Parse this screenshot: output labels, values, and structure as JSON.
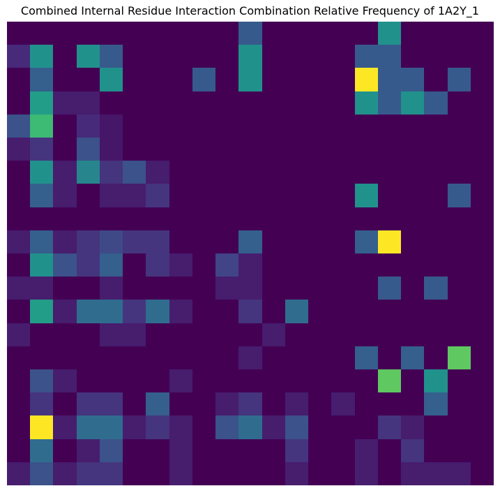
{
  "chart_data": {
    "type": "heatmap",
    "title": "Combined Internal Residue Interaction Combination Relative Frequency of 1A2Y_1",
    "xlabel": "",
    "ylabel": "",
    "colormap": "viridis",
    "value_range": [
      0,
      1
    ],
    "axes_visible": false,
    "grid": false,
    "n_rows": 20,
    "n_cols": 21,
    "values": [
      [
        0,
        0,
        0,
        0,
        0,
        0,
        0,
        0,
        0,
        0,
        0.28,
        0,
        0,
        0,
        0,
        0,
        0.5,
        0,
        0,
        0,
        0
      ],
      [
        0.12,
        0.5,
        0,
        0.5,
        0.28,
        0,
        0,
        0,
        0,
        0,
        0.5,
        0,
        0,
        0,
        0,
        0.28,
        0.28,
        0,
        0,
        0,
        0
      ],
      [
        0,
        0.3,
        0,
        0,
        0.5,
        0,
        0,
        0,
        0.28,
        0,
        0.5,
        0,
        0,
        0,
        0,
        1,
        0.28,
        0.28,
        0,
        0.28,
        0
      ],
      [
        0,
        0.55,
        0.08,
        0.08,
        0,
        0,
        0,
        0,
        0,
        0,
        0,
        0,
        0,
        0,
        0,
        0.5,
        0.28,
        0.5,
        0.28,
        0,
        0
      ],
      [
        0.25,
        0.68,
        0,
        0.12,
        0.06,
        0,
        0,
        0,
        0,
        0,
        0,
        0,
        0,
        0,
        0,
        0,
        0,
        0,
        0,
        0,
        0
      ],
      [
        0.08,
        0.15,
        0,
        0.25,
        0.06,
        0,
        0,
        0,
        0,
        0,
        0,
        0,
        0,
        0,
        0,
        0,
        0,
        0,
        0,
        0,
        0
      ],
      [
        0,
        0.5,
        0.08,
        0.45,
        0.15,
        0.25,
        0.08,
        0,
        0,
        0,
        0,
        0,
        0,
        0,
        0,
        0,
        0,
        0,
        0,
        0,
        0
      ],
      [
        0,
        0.3,
        0.08,
        0,
        0.08,
        0.08,
        0.15,
        0,
        0,
        0,
        0,
        0,
        0,
        0,
        0,
        0.5,
        0,
        0,
        0,
        0.28,
        0
      ],
      [
        0,
        0,
        0,
        0,
        0,
        0,
        0,
        0,
        0,
        0,
        0,
        0,
        0,
        0,
        0,
        0,
        0,
        0,
        0,
        0,
        0
      ],
      [
        0.08,
        0.3,
        0.08,
        0.15,
        0.22,
        0.15,
        0.15,
        0,
        0,
        0,
        0.3,
        0,
        0,
        0,
        0,
        0.3,
        1,
        0,
        0,
        0,
        0
      ],
      [
        0,
        0.5,
        0.25,
        0.15,
        0.3,
        0,
        0.15,
        0.08,
        0,
        0.2,
        0.08,
        0,
        0,
        0,
        0,
        0,
        0,
        0,
        0,
        0,
        0
      ],
      [
        0.08,
        0.08,
        0,
        0,
        0.08,
        0,
        0,
        0,
        0,
        0.08,
        0.08,
        0,
        0,
        0,
        0,
        0,
        0.28,
        0,
        0.28,
        0,
        0
      ],
      [
        0,
        0.55,
        0.08,
        0.35,
        0.35,
        0.15,
        0.35,
        0.08,
        0,
        0,
        0.15,
        0,
        0.35,
        0,
        0,
        0,
        0,
        0,
        0,
        0,
        0
      ],
      [
        0.08,
        0,
        0,
        0,
        0.08,
        0.08,
        0,
        0,
        0,
        0,
        0,
        0.08,
        0,
        0,
        0,
        0,
        0,
        0,
        0,
        0,
        0
      ],
      [
        0,
        0,
        0,
        0,
        0,
        0,
        0,
        0,
        0,
        0,
        0.08,
        0,
        0,
        0,
        0,
        0.3,
        0,
        0.3,
        0,
        0.75,
        0
      ],
      [
        0,
        0.25,
        0.08,
        0,
        0,
        0,
        0,
        0.08,
        0,
        0,
        0,
        0,
        0,
        0,
        0,
        0,
        0.75,
        0,
        0.5,
        0,
        0
      ],
      [
        0,
        0.15,
        0,
        0.15,
        0.15,
        0,
        0.3,
        0,
        0,
        0.08,
        0.15,
        0,
        0.08,
        0,
        0.08,
        0,
        0,
        0,
        0.3,
        0,
        0
      ],
      [
        0,
        1,
        0.08,
        0.35,
        0.35,
        0.08,
        0.15,
        0.08,
        0,
        0.25,
        0.35,
        0.08,
        0.25,
        0,
        0,
        0,
        0.15,
        0.08,
        0,
        0,
        0
      ],
      [
        0,
        0.35,
        0,
        0.08,
        0.25,
        0,
        0,
        0.08,
        0,
        0,
        0,
        0,
        0.15,
        0,
        0,
        0.08,
        0,
        0.15,
        0,
        0,
        0
      ],
      [
        0.08,
        0.25,
        0.08,
        0.15,
        0.15,
        0,
        0,
        0.08,
        0,
        0,
        0,
        0,
        0.08,
        0,
        0,
        0.08,
        0,
        0.08,
        0.08,
        0.08,
        0
      ]
    ]
  }
}
